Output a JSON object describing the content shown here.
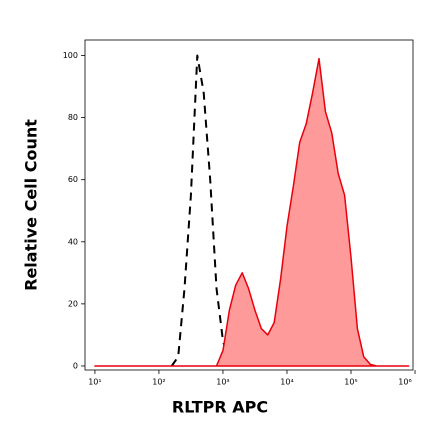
{
  "chart_data": {
    "type": "line",
    "x_label": "RLTPR APC",
    "y_label": "Relative Cell Count",
    "xscale": "log",
    "xlim": [
      7,
      930000
    ],
    "ylim": [
      -1.3,
      105
    ],
    "xticks": [
      {
        "value": 10,
        "label": "10¹"
      },
      {
        "value": 100,
        "label": "10²"
      },
      {
        "value": 1000,
        "label": "10³"
      },
      {
        "value": 10000,
        "label": "10⁴"
      },
      {
        "value": 100000,
        "label": "10⁵"
      },
      {
        "value": 1000000,
        "label": "10⁶"
      }
    ],
    "yticks": [
      0,
      20,
      40,
      60,
      80,
      100
    ],
    "x": [
      10,
      12.6,
      15.8,
      20,
      25.1,
      31.6,
      39.8,
      50.1,
      63.1,
      79.4,
      100,
      126,
      158,
      200,
      251,
      316,
      398,
      501,
      631,
      794,
      1000,
      1260,
      1580,
      2000,
      2510,
      3160,
      3980,
      5010,
      6310,
      7940,
      10000,
      12600,
      15800,
      20000,
      25100,
      31600,
      39800,
      50100,
      63100,
      79400,
      100000,
      126000,
      158000,
      200000,
      251000,
      316000,
      398000,
      501000,
      631000,
      794000
    ],
    "series": [
      {
        "color": "#000000",
        "dashed": true,
        "filled": false,
        "values": [
          null,
          null,
          null,
          null,
          null,
          null,
          null,
          null,
          null,
          null,
          null,
          null,
          0,
          3,
          25,
          55,
          100,
          88,
          60,
          25,
          8,
          1,
          0,
          null,
          null,
          null,
          null,
          null,
          null,
          null,
          null,
          null,
          null,
          null,
          null,
          null,
          null,
          null,
          null,
          null,
          null,
          null,
          null,
          null,
          null,
          null,
          null,
          null,
          null,
          null
        ]
      },
      {
        "color": "#e8000b",
        "dashed": false,
        "filled": true,
        "fill": "#ff9a9a",
        "values": [
          0,
          0,
          0,
          0,
          0,
          0,
          0,
          0,
          0,
          0,
          0,
          0,
          0,
          0,
          0,
          0,
          0,
          0,
          0,
          0,
          5,
          18,
          26,
          30,
          25,
          18,
          12,
          10,
          14,
          28,
          45,
          58,
          72,
          78,
          88,
          99,
          82,
          75,
          62,
          55,
          35,
          12,
          3,
          0.5,
          0,
          0,
          0,
          0,
          0,
          0
        ]
      }
    ]
  }
}
